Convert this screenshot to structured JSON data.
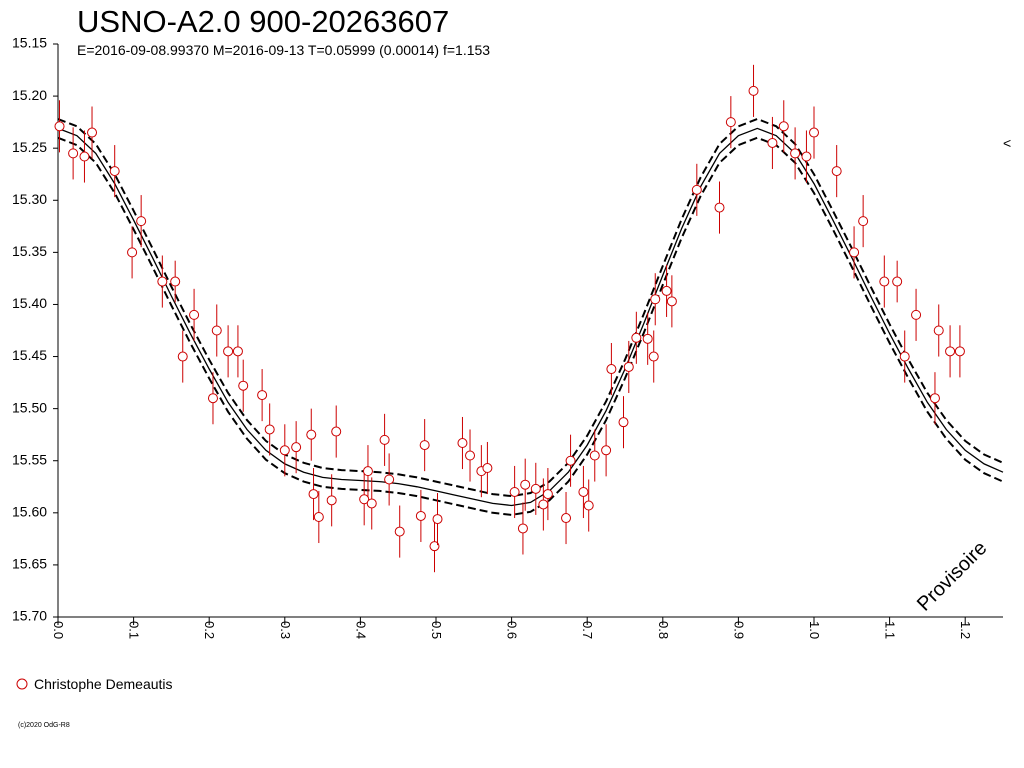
{
  "chart_data": {
    "type": "scatter",
    "title": "USNO-A2.0 900-20263607",
    "subtitle": "E=2016-09-08.99370    M=2016-09-13    T=0.05999 (0.00014)    f=1.153",
    "xlabel": "",
    "ylabel": "",
    "xlim": [
      0.0,
      1.25
    ],
    "ylim": [
      15.15,
      15.7
    ],
    "y_inverted": true,
    "x_ticks": [
      "0.0",
      "0.1",
      "0.2",
      "0.3",
      "0.4",
      "0.5",
      "0.6",
      "0.7",
      "0.8",
      "0.9",
      "1.0",
      "1.1",
      "1.2"
    ],
    "y_ticks": [
      "15.15",
      "15.20",
      "15.25",
      "15.30",
      "15.35",
      "15.40",
      "15.45",
      "15.50",
      "15.55",
      "15.60",
      "15.65",
      "15.70"
    ],
    "grid": false,
    "legend_position": "bottom-left",
    "colors": {
      "points": "#cc0000",
      "curve": "#000000"
    },
    "series": [
      {
        "name": "Christophe Demeautis",
        "points": [
          [
            0.002,
            15.229,
            0.025
          ],
          [
            0.02,
            15.255,
            0.025
          ],
          [
            0.035,
            15.258,
            0.025
          ],
          [
            0.045,
            15.235,
            0.025
          ],
          [
            0.075,
            15.272,
            0.025
          ],
          [
            0.098,
            15.35,
            0.025
          ],
          [
            0.11,
            15.32,
            0.025
          ],
          [
            0.138,
            15.378,
            0.025
          ],
          [
            0.155,
            15.378,
            0.02
          ],
          [
            0.165,
            15.45,
            0.025
          ],
          [
            0.18,
            15.41,
            0.025
          ],
          [
            0.205,
            15.49,
            0.025
          ],
          [
            0.21,
            15.425,
            0.025
          ],
          [
            0.225,
            15.445,
            0.025
          ],
          [
            0.238,
            15.445,
            0.025
          ],
          [
            0.245,
            15.478,
            0.025
          ],
          [
            0.27,
            15.487,
            0.025
          ],
          [
            0.28,
            15.52,
            0.025
          ],
          [
            0.3,
            15.54,
            0.025
          ],
          [
            0.315,
            15.537,
            0.025
          ],
          [
            0.335,
            15.525,
            0.025
          ],
          [
            0.338,
            15.582,
            0.025
          ],
          [
            0.345,
            15.604,
            0.025
          ],
          [
            0.362,
            15.588,
            0.025
          ],
          [
            0.368,
            15.522,
            0.025
          ],
          [
            0.405,
            15.587,
            0.025
          ],
          [
            0.41,
            15.56,
            0.025
          ],
          [
            0.415,
            15.591,
            0.025
          ],
          [
            0.432,
            15.53,
            0.025
          ],
          [
            0.438,
            15.568,
            0.025
          ],
          [
            0.452,
            15.618,
            0.025
          ],
          [
            0.48,
            15.603,
            0.025
          ],
          [
            0.485,
            15.535,
            0.025
          ],
          [
            0.498,
            15.632,
            0.025
          ],
          [
            0.502,
            15.606,
            0.025
          ],
          [
            0.535,
            15.533,
            0.025
          ],
          [
            0.545,
            15.545,
            0.025
          ],
          [
            0.56,
            15.56,
            0.025
          ],
          [
            0.568,
            15.557,
            0.025
          ],
          [
            0.604,
            15.58,
            0.025
          ],
          [
            0.615,
            15.615,
            0.025
          ],
          [
            0.618,
            15.573,
            0.025
          ],
          [
            0.632,
            15.577,
            0.025
          ],
          [
            0.642,
            15.592,
            0.025
          ],
          [
            0.648,
            15.582,
            0.025
          ],
          [
            0.672,
            15.605,
            0.025
          ],
          [
            0.678,
            15.55,
            0.025
          ],
          [
            0.695,
            15.58,
            0.025
          ],
          [
            0.702,
            15.593,
            0.025
          ],
          [
            0.71,
            15.545,
            0.025
          ],
          [
            0.725,
            15.54,
            0.025
          ],
          [
            0.732,
            15.462,
            0.025
          ],
          [
            0.748,
            15.513,
            0.025
          ],
          [
            0.755,
            15.46,
            0.025
          ],
          [
            0.765,
            15.432,
            0.025
          ],
          [
            0.78,
            15.433,
            0.025
          ],
          [
            0.788,
            15.45,
            0.025
          ],
          [
            0.79,
            15.395,
            0.025
          ],
          [
            0.805,
            15.387,
            0.025
          ],
          [
            0.812,
            15.397,
            0.025
          ],
          [
            0.845,
            15.29,
            0.025
          ],
          [
            0.875,
            15.307,
            0.025
          ],
          [
            0.89,
            15.225,
            0.025
          ],
          [
            0.92,
            15.195,
            0.025
          ],
          [
            0.945,
            15.245,
            0.025
          ],
          [
            0.96,
            15.229,
            0.025
          ],
          [
            0.975,
            15.255,
            0.025
          ],
          [
            0.99,
            15.258,
            0.025
          ],
          [
            1.0,
            15.235,
            0.025
          ],
          [
            1.03,
            15.272,
            0.025
          ],
          [
            1.053,
            15.35,
            0.025
          ],
          [
            1.065,
            15.32,
            0.025
          ],
          [
            1.093,
            15.378,
            0.025
          ],
          [
            1.11,
            15.378,
            0.02
          ],
          [
            1.12,
            15.45,
            0.025
          ],
          [
            1.135,
            15.41,
            0.025
          ],
          [
            1.16,
            15.49,
            0.025
          ],
          [
            1.165,
            15.425,
            0.025
          ],
          [
            1.18,
            15.445,
            0.025
          ],
          [
            1.193,
            15.445,
            0.025
          ]
        ]
      }
    ],
    "model_curve": {
      "x": [
        0.0,
        0.025,
        0.05,
        0.075,
        0.1,
        0.125,
        0.15,
        0.175,
        0.2,
        0.225,
        0.25,
        0.275,
        0.3,
        0.325,
        0.35,
        0.375,
        0.4,
        0.425,
        0.45,
        0.475,
        0.5,
        0.525,
        0.55,
        0.575,
        0.6,
        0.625,
        0.65,
        0.675,
        0.7,
        0.725,
        0.75,
        0.775,
        0.8,
        0.825,
        0.85,
        0.875,
        0.9,
        0.925,
        0.95,
        0.975,
        1.0,
        1.025,
        1.05,
        1.075,
        1.1,
        1.125,
        1.15,
        1.175,
        1.2,
        1.225,
        1.25
      ],
      "y": [
        15.231,
        15.238,
        15.255,
        15.284,
        15.319,
        15.355,
        15.392,
        15.428,
        15.462,
        15.494,
        15.52,
        15.54,
        15.553,
        15.561,
        15.566,
        15.568,
        15.569,
        15.57,
        15.572,
        15.575,
        15.579,
        15.583,
        15.587,
        15.591,
        15.593,
        15.59,
        15.579,
        15.561,
        15.535,
        15.502,
        15.462,
        15.418,
        15.372,
        15.327,
        15.287,
        15.255,
        15.238,
        15.231,
        15.238,
        15.255,
        15.284,
        15.319,
        15.355,
        15.392,
        15.428,
        15.462,
        15.494,
        15.52,
        15.54,
        15.553,
        15.561
      ],
      "band_offset": 0.009
    },
    "watermark": "Provisoire",
    "copyright": "(c)2020 OdG-R8",
    "corner_mark": "<"
  }
}
